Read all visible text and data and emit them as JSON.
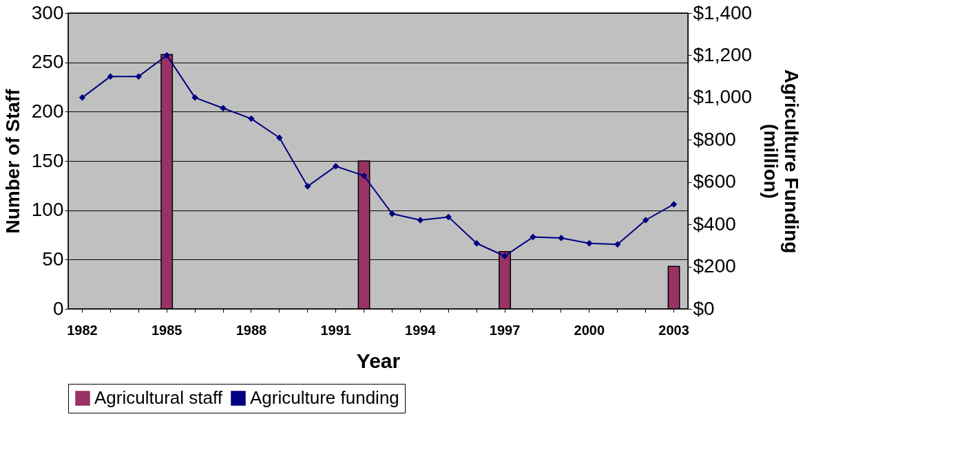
{
  "chart_data": {
    "type": "bar",
    "xlabel": "Year",
    "ylabel": "Number of Staff",
    "y2label": "Agriculture Funding\n(million)",
    "categories": [
      "1982",
      null,
      null,
      "1985",
      null,
      null,
      "1988",
      null,
      null,
      "1991",
      null,
      null,
      "1994",
      null,
      null,
      "1997",
      null,
      null,
      "2000",
      null,
      null,
      "2003"
    ],
    "series": [
      {
        "name": "Agricultural staff",
        "color": "#993366",
        "values": [
          null,
          null,
          null,
          258,
          null,
          null,
          null,
          null,
          null,
          null,
          150,
          null,
          null,
          null,
          null,
          58,
          null,
          null,
          null,
          null,
          null,
          43
        ]
      },
      {
        "name": "Agriculture funding",
        "type": "line",
        "axis": "y2",
        "color": "#000080",
        "values": [
          1000,
          1100,
          1100,
          1200,
          1000,
          950,
          900,
          810,
          580,
          675,
          630,
          450,
          420,
          435,
          310,
          250,
          340,
          335,
          310,
          305,
          420,
          495
        ]
      }
    ],
    "ylim": [
      0,
      300
    ],
    "yticks": [
      0,
      50,
      100,
      150,
      200,
      250,
      300
    ],
    "y2lim": [
      0,
      1400
    ],
    "y2ticks": [
      {
        "value": 0,
        "label": "$0"
      },
      {
        "value": 200,
        "label": "$200"
      },
      {
        "value": 400,
        "label": "$400"
      },
      {
        "value": 600,
        "label": "$600"
      },
      {
        "value": 800,
        "label": "$800"
      },
      {
        "value": 1000,
        "label": "$1,000"
      },
      {
        "value": 1200,
        "label": "$1,200"
      },
      {
        "value": 1400,
        "label": "$1,400"
      }
    ],
    "grid": "y",
    "legend": "bottom",
    "marker": "diamond"
  }
}
